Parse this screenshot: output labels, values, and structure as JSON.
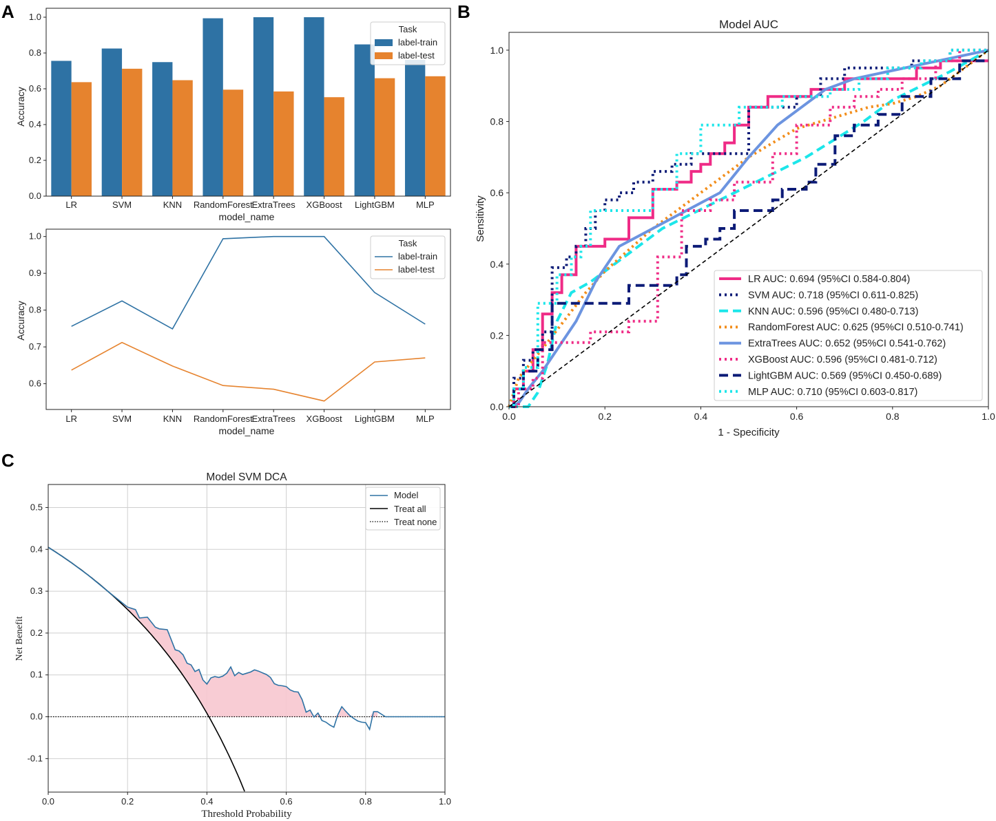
{
  "panel_letters": [
    "A",
    "B",
    "C"
  ],
  "chart_data": [
    {
      "id": "A1",
      "type": "bar",
      "title": "",
      "xlabel": "model_name",
      "ylabel": "Accuracy",
      "categories": [
        "LR",
        "SVM",
        "KNN",
        "RandomForest",
        "ExtraTrees",
        "XGBoost",
        "LightGBM",
        "MLP"
      ],
      "ylim": [
        0,
        1.05
      ],
      "yticks": [
        "0.0",
        "0.2",
        "0.4",
        "0.6",
        "0.8",
        "1.0"
      ],
      "legend_title": "Task",
      "legend_position": "top-right",
      "series": [
        {
          "name": "label-train",
          "color": "#2e72a4",
          "values": [
            0.756,
            0.825,
            0.749,
            0.994,
            1.0,
            1.0,
            0.848,
            0.762
          ]
        },
        {
          "name": "label-test",
          "color": "#e6832e",
          "values": [
            0.637,
            0.712,
            0.648,
            0.595,
            0.585,
            0.553,
            0.659,
            0.67
          ]
        }
      ]
    },
    {
      "id": "A2",
      "type": "line",
      "title": "",
      "xlabel": "model_name",
      "ylabel": "Accuracy",
      "categories": [
        "LR",
        "SVM",
        "KNN",
        "RandomForest",
        "ExtraTrees",
        "XGBoost",
        "LightGBM",
        "MLP"
      ],
      "ylim": [
        0.53,
        1.02
      ],
      "yticks": [
        "0.6",
        "0.7",
        "0.8",
        "0.9",
        "1.0"
      ],
      "legend_title": "Task",
      "legend_position": "top-right",
      "series": [
        {
          "name": "label-train",
          "color": "#2e72a4",
          "values": [
            0.756,
            0.825,
            0.749,
            0.994,
            1.0,
            1.0,
            0.848,
            0.762
          ]
        },
        {
          "name": "label-test",
          "color": "#e6832e",
          "values": [
            0.637,
            0.712,
            0.648,
            0.595,
            0.585,
            0.553,
            0.659,
            0.67
          ]
        }
      ]
    },
    {
      "id": "B",
      "type": "line",
      "title": "Model AUC",
      "xlabel": "1 - Specificity",
      "ylabel": "Sensitivity",
      "xlim": [
        0,
        1
      ],
      "ylim": [
        0,
        1.05
      ],
      "xticks": [
        "0.0",
        "0.2",
        "0.4",
        "0.6",
        "0.8",
        "1.0"
      ],
      "yticks": [
        "0.0",
        "0.2",
        "0.4",
        "0.6",
        "0.8",
        "1.0"
      ],
      "legend_position": "lower-right",
      "series": [
        {
          "name": "LR AUC: 0.694 (95%CI 0.584-0.804)",
          "color": "#ef2b86",
          "dash": "solid",
          "x": [
            0,
            0.01,
            0.01,
            0.03,
            0.03,
            0.05,
            0.05,
            0.07,
            0.07,
            0.09,
            0.09,
            0.11,
            0.11,
            0.14,
            0.14,
            0.17,
            0.17,
            0.2,
            0.2,
            0.25,
            0.25,
            0.3,
            0.3,
            0.35,
            0.35,
            0.38,
            0.38,
            0.4,
            0.4,
            0.42,
            0.42,
            0.45,
            0.45,
            0.47,
            0.47,
            0.5,
            0.5,
            0.54,
            0.54,
            0.58,
            0.58,
            0.63,
            0.63,
            0.7,
            0.7,
            0.77,
            0.77,
            0.85,
            0.85,
            0.9,
            0.9,
            0.97,
            0.97,
            1.0
          ],
          "y": [
            0,
            0,
            0.05,
            0.05,
            0.1,
            0.1,
            0.16,
            0.16,
            0.26,
            0.26,
            0.32,
            0.32,
            0.37,
            0.37,
            0.45,
            0.45,
            0.45,
            0.45,
            0.47,
            0.47,
            0.53,
            0.53,
            0.61,
            0.61,
            0.63,
            0.63,
            0.66,
            0.66,
            0.68,
            0.68,
            0.71,
            0.71,
            0.74,
            0.74,
            0.79,
            0.79,
            0.84,
            0.84,
            0.87,
            0.87,
            0.87,
            0.87,
            0.89,
            0.89,
            0.92,
            0.92,
            0.92,
            0.92,
            0.95,
            0.95,
            0.97,
            0.97,
            0.97,
            0.97
          ]
        },
        {
          "name": "SVM AUC: 0.718 (95%CI 0.611-0.825)",
          "color": "#0c1b77",
          "dash": "dot",
          "x": [
            0,
            0.01,
            0.01,
            0.03,
            0.03,
            0.05,
            0.05,
            0.07,
            0.07,
            0.09,
            0.09,
            0.12,
            0.12,
            0.14,
            0.14,
            0.16,
            0.16,
            0.18,
            0.18,
            0.2,
            0.2,
            0.23,
            0.23,
            0.26,
            0.26,
            0.3,
            0.3,
            0.34,
            0.34,
            0.38,
            0.38,
            0.42,
            0.42,
            0.45,
            0.45,
            0.5,
            0.5,
            0.6,
            0.6,
            0.65,
            0.65,
            0.7,
            0.7,
            0.77,
            0.77,
            0.84,
            0.84,
            0.88,
            0.88,
            0.92,
            0.92,
            1.0
          ],
          "y": [
            0,
            0,
            0.08,
            0.08,
            0.13,
            0.13,
            0.16,
            0.16,
            0.21,
            0.21,
            0.39,
            0.39,
            0.42,
            0.42,
            0.45,
            0.45,
            0.5,
            0.5,
            0.55,
            0.55,
            0.58,
            0.58,
            0.6,
            0.6,
            0.63,
            0.63,
            0.66,
            0.66,
            0.68,
            0.68,
            0.71,
            0.71,
            0.71,
            0.71,
            0.71,
            0.71,
            0.84,
            0.84,
            0.87,
            0.87,
            0.92,
            0.92,
            0.95,
            0.95,
            0.95,
            0.95,
            0.97,
            0.97,
            0.97,
            0.97,
            1.0,
            1.0
          ]
        },
        {
          "name": "KNN AUC: 0.596 (95%CI 0.480-0.713)",
          "color": "#1ce6ea",
          "dash": "dash",
          "x": [
            0,
            0.04,
            0.06,
            0.08,
            0.1,
            0.13,
            0.17,
            0.22,
            0.27,
            0.32,
            0.38,
            0.44,
            0.5,
            0.56,
            0.62,
            0.68,
            0.74,
            0.8,
            0.86,
            0.92,
            0.96,
            1.0
          ],
          "y": [
            0,
            0,
            0.04,
            0.12,
            0.24,
            0.32,
            0.35,
            0.4,
            0.45,
            0.5,
            0.54,
            0.58,
            0.62,
            0.66,
            0.7,
            0.75,
            0.8,
            0.86,
            0.9,
            0.94,
            0.97,
            1.0
          ]
        },
        {
          "name": "RandomForest AUC: 0.625 (95%CI 0.510-0.741)",
          "color": "#f28e1c",
          "dash": "dot",
          "x": [
            0,
            0.02,
            0.05,
            0.08,
            0.12,
            0.16,
            0.2,
            0.25,
            0.3,
            0.35,
            0.4,
            0.45,
            0.5,
            0.55,
            0.6,
            0.65,
            0.7,
            0.75,
            0.8,
            0.85,
            0.9,
            0.95,
            1.0
          ],
          "y": [
            0,
            0.08,
            0.13,
            0.18,
            0.25,
            0.32,
            0.38,
            0.44,
            0.5,
            0.55,
            0.6,
            0.65,
            0.7,
            0.74,
            0.78,
            0.8,
            0.82,
            0.84,
            0.85,
            0.87,
            0.9,
            0.95,
            1.0
          ]
        },
        {
          "name": "ExtraTrees AUC: 0.652 (95%CI 0.541-0.762)",
          "color": "#6c94e0",
          "dash": "solid",
          "x": [
            0,
            0.02,
            0.04,
            0.07,
            0.1,
            0.14,
            0.18,
            0.23,
            0.3,
            0.37,
            0.44,
            0.5,
            0.56,
            0.61,
            0.66,
            0.72,
            0.79,
            0.86,
            0.93,
            1.0
          ],
          "y": [
            0,
            0.01,
            0.05,
            0.1,
            0.16,
            0.24,
            0.35,
            0.45,
            0.5,
            0.55,
            0.6,
            0.7,
            0.79,
            0.84,
            0.89,
            0.92,
            0.94,
            0.96,
            0.98,
            1.0
          ]
        },
        {
          "name": "XGBoost AUC: 0.596 (95%CI 0.481-0.712)",
          "color": "#ef2b86",
          "dash": "dot",
          "x": [
            0,
            0.02,
            0.02,
            0.05,
            0.05,
            0.07,
            0.07,
            0.1,
            0.1,
            0.17,
            0.17,
            0.25,
            0.25,
            0.31,
            0.31,
            0.36,
            0.36,
            0.42,
            0.42,
            0.47,
            0.47,
            0.55,
            0.55,
            0.6,
            0.6,
            0.67,
            0.67,
            0.72,
            0.72,
            0.77,
            0.77,
            0.82,
            0.82,
            0.89,
            0.89,
            0.94,
            0.94,
            1.0
          ],
          "y": [
            0,
            0,
            0.05,
            0.05,
            0.08,
            0.08,
            0.18,
            0.18,
            0.18,
            0.18,
            0.21,
            0.21,
            0.24,
            0.24,
            0.42,
            0.42,
            0.55,
            0.55,
            0.58,
            0.58,
            0.63,
            0.63,
            0.71,
            0.71,
            0.79,
            0.79,
            0.84,
            0.84,
            0.87,
            0.87,
            0.89,
            0.89,
            0.92,
            0.92,
            0.97,
            0.97,
            1.0,
            1.0
          ]
        },
        {
          "name": "LightGBM AUC: 0.569 (95%CI 0.450-0.689)",
          "color": "#0c1b77",
          "dash": "dash",
          "x": [
            0,
            0.01,
            0.01,
            0.03,
            0.03,
            0.06,
            0.06,
            0.09,
            0.09,
            0.25,
            0.25,
            0.35,
            0.35,
            0.37,
            0.37,
            0.41,
            0.41,
            0.44,
            0.44,
            0.47,
            0.47,
            0.55,
            0.55,
            0.57,
            0.57,
            0.62,
            0.62,
            0.64,
            0.64,
            0.68,
            0.68,
            0.72,
            0.72,
            0.77,
            0.77,
            0.82,
            0.82,
            0.88,
            0.88,
            0.94,
            0.94,
            1.0
          ],
          "y": [
            0,
            0,
            0.05,
            0.05,
            0.1,
            0.1,
            0.16,
            0.16,
            0.29,
            0.29,
            0.34,
            0.34,
            0.37,
            0.37,
            0.45,
            0.45,
            0.47,
            0.47,
            0.5,
            0.5,
            0.55,
            0.55,
            0.58,
            0.58,
            0.61,
            0.61,
            0.63,
            0.63,
            0.68,
            0.68,
            0.76,
            0.76,
            0.79,
            0.79,
            0.82,
            0.82,
            0.87,
            0.87,
            0.92,
            0.92,
            0.97,
            0.97
          ]
        },
        {
          "name": "MLP AUC: 0.710 (95%CI 0.603-0.817)",
          "color": "#1ce6ea",
          "dash": "dot",
          "x": [
            0,
            0.01,
            0.01,
            0.03,
            0.03,
            0.06,
            0.06,
            0.1,
            0.1,
            0.13,
            0.13,
            0.15,
            0.15,
            0.17,
            0.17,
            0.22,
            0.22,
            0.3,
            0.3,
            0.35,
            0.35,
            0.4,
            0.4,
            0.43,
            0.43,
            0.48,
            0.48,
            0.53,
            0.53,
            0.57,
            0.57,
            0.62,
            0.62,
            0.67,
            0.67,
            0.73,
            0.73,
            0.79,
            0.79,
            0.86,
            0.86,
            0.92,
            0.92,
            1.0
          ],
          "y": [
            0,
            0,
            0.05,
            0.05,
            0.11,
            0.11,
            0.29,
            0.29,
            0.37,
            0.37,
            0.42,
            0.42,
            0.45,
            0.45,
            0.55,
            0.55,
            0.55,
            0.55,
            0.61,
            0.61,
            0.71,
            0.71,
            0.79,
            0.79,
            0.79,
            0.79,
            0.84,
            0.84,
            0.84,
            0.84,
            0.87,
            0.87,
            0.87,
            0.87,
            0.89,
            0.89,
            0.92,
            0.92,
            0.95,
            0.95,
            0.97,
            0.97,
            1.0,
            1.0
          ]
        },
        {
          "name": "",
          "color": "#000000",
          "dash": "dash",
          "x": [
            0,
            1
          ],
          "y": [
            0,
            1
          ]
        }
      ]
    },
    {
      "id": "C",
      "type": "line",
      "title": "Model SVM DCA",
      "xlabel": "Threshold Probability",
      "ylabel": "Net Benefit",
      "xlim": [
        0,
        1
      ],
      "ylim": [
        -0.18,
        0.555
      ],
      "xticks": [
        "0.0",
        "0.2",
        "0.4",
        "0.6",
        "0.8",
        "1.0"
      ],
      "yticks": [
        "-0.1",
        "0.0",
        "0.1",
        "0.2",
        "0.3",
        "0.4",
        "0.5"
      ],
      "grid": true,
      "legend_position": "top-right",
      "prevalence": 0.405,
      "series": [
        {
          "name": "Model",
          "color": "#2e72a4",
          "x": [
            0,
            0.05,
            0.1,
            0.15,
            0.2,
            0.22,
            0.23,
            0.25,
            0.26,
            0.27,
            0.28,
            0.3,
            0.31,
            0.32,
            0.33,
            0.34,
            0.35,
            0.36,
            0.37,
            0.38,
            0.39,
            0.4,
            0.41,
            0.42,
            0.43,
            0.44,
            0.45,
            0.46,
            0.47,
            0.48,
            0.49,
            0.5,
            0.51,
            0.52,
            0.53,
            0.54,
            0.55,
            0.56,
            0.57,
            0.58,
            0.59,
            0.6,
            0.61,
            0.62,
            0.63,
            0.64,
            0.65,
            0.66,
            0.67,
            0.68,
            0.69,
            0.7,
            0.71,
            0.72,
            0.73,
            0.74,
            0.75,
            0.76,
            0.77,
            0.78,
            0.79,
            0.8,
            0.81,
            0.82,
            0.83,
            0.85,
            0.9,
            0.95,
            1.0
          ],
          "y": [
            0.405,
            0.374,
            0.339,
            0.3,
            0.262,
            0.256,
            0.236,
            0.238,
            0.226,
            0.214,
            0.21,
            0.208,
            0.184,
            0.16,
            0.157,
            0.148,
            0.128,
            0.124,
            0.108,
            0.113,
            0.088,
            0.078,
            0.093,
            0.096,
            0.094,
            0.097,
            0.104,
            0.119,
            0.098,
            0.106,
            0.101,
            0.104,
            0.107,
            0.112,
            0.109,
            0.105,
            0.101,
            0.094,
            0.079,
            0.075,
            0.074,
            0.072,
            0.064,
            0.06,
            0.059,
            0.041,
            0.011,
            0.016,
            -0.001,
            0.009,
            -0.009,
            -0.013,
            -0.02,
            -0.025,
            0.005,
            0.024,
            0.013,
            0.003,
            -0.004,
            -0.01,
            -0.013,
            -0.014,
            -0.03,
            0.012,
            0.012,
            0,
            0,
            0,
            0
          ]
        },
        {
          "name": "Treat all",
          "color": "#000000",
          "x": [
            0,
            0.05,
            0.1,
            0.15,
            0.2,
            0.25,
            0.3,
            0.35,
            0.4,
            0.45,
            0.5
          ],
          "y": [
            0.405,
            0.374,
            0.339,
            0.3,
            0.256,
            0.207,
            0.15,
            0.085,
            0.008,
            -0.082,
            -0.19
          ]
        },
        {
          "name": "Treat none",
          "color": "#000000",
          "dash": "dot",
          "x": [
            0,
            1
          ],
          "y": [
            0,
            0
          ]
        }
      ]
    }
  ]
}
